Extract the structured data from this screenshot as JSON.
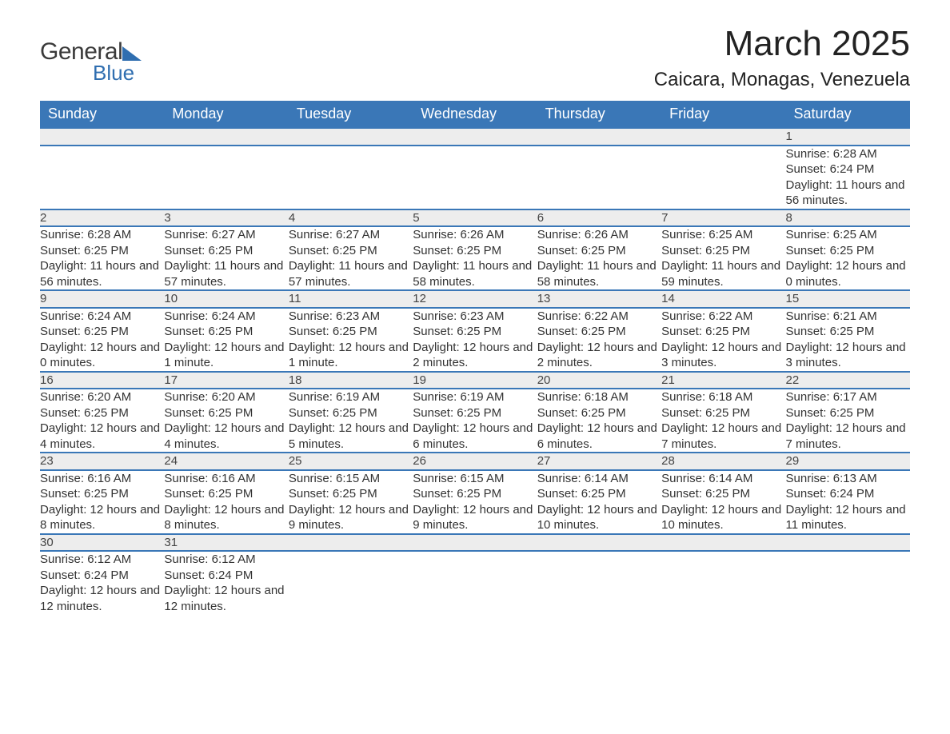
{
  "logo": {
    "word1": "General",
    "word2": "Blue"
  },
  "title": "March 2025",
  "location": "Caicara, Monagas, Venezuela",
  "colors": {
    "header_bg": "#3a77b7",
    "header_text": "#ffffff",
    "daynum_bg": "#ededed",
    "border": "#3a77b7",
    "text": "#333333",
    "logo_accent": "#2f6eb0"
  },
  "typography": {
    "title_fontsize": 44,
    "location_fontsize": 24,
    "header_fontsize": 18,
    "daynum_fontsize": 17,
    "body_fontsize": 15
  },
  "dow": [
    "Sunday",
    "Monday",
    "Tuesday",
    "Wednesday",
    "Thursday",
    "Friday",
    "Saturday"
  ],
  "weeks": [
    [
      null,
      null,
      null,
      null,
      null,
      null,
      {
        "n": "1",
        "sunrise": "Sunrise: 6:28 AM",
        "sunset": "Sunset: 6:24 PM",
        "day": "Daylight: 11 hours and 56 minutes."
      }
    ],
    [
      {
        "n": "2",
        "sunrise": "Sunrise: 6:28 AM",
        "sunset": "Sunset: 6:25 PM",
        "day": "Daylight: 11 hours and 56 minutes."
      },
      {
        "n": "3",
        "sunrise": "Sunrise: 6:27 AM",
        "sunset": "Sunset: 6:25 PM",
        "day": "Daylight: 11 hours and 57 minutes."
      },
      {
        "n": "4",
        "sunrise": "Sunrise: 6:27 AM",
        "sunset": "Sunset: 6:25 PM",
        "day": "Daylight: 11 hours and 57 minutes."
      },
      {
        "n": "5",
        "sunrise": "Sunrise: 6:26 AM",
        "sunset": "Sunset: 6:25 PM",
        "day": "Daylight: 11 hours and 58 minutes."
      },
      {
        "n": "6",
        "sunrise": "Sunrise: 6:26 AM",
        "sunset": "Sunset: 6:25 PM",
        "day": "Daylight: 11 hours and 58 minutes."
      },
      {
        "n": "7",
        "sunrise": "Sunrise: 6:25 AM",
        "sunset": "Sunset: 6:25 PM",
        "day": "Daylight: 11 hours and 59 minutes."
      },
      {
        "n": "8",
        "sunrise": "Sunrise: 6:25 AM",
        "sunset": "Sunset: 6:25 PM",
        "day": "Daylight: 12 hours and 0 minutes."
      }
    ],
    [
      {
        "n": "9",
        "sunrise": "Sunrise: 6:24 AM",
        "sunset": "Sunset: 6:25 PM",
        "day": "Daylight: 12 hours and 0 minutes."
      },
      {
        "n": "10",
        "sunrise": "Sunrise: 6:24 AM",
        "sunset": "Sunset: 6:25 PM",
        "day": "Daylight: 12 hours and 1 minute."
      },
      {
        "n": "11",
        "sunrise": "Sunrise: 6:23 AM",
        "sunset": "Sunset: 6:25 PM",
        "day": "Daylight: 12 hours and 1 minute."
      },
      {
        "n": "12",
        "sunrise": "Sunrise: 6:23 AM",
        "sunset": "Sunset: 6:25 PM",
        "day": "Daylight: 12 hours and 2 minutes."
      },
      {
        "n": "13",
        "sunrise": "Sunrise: 6:22 AM",
        "sunset": "Sunset: 6:25 PM",
        "day": "Daylight: 12 hours and 2 minutes."
      },
      {
        "n": "14",
        "sunrise": "Sunrise: 6:22 AM",
        "sunset": "Sunset: 6:25 PM",
        "day": "Daylight: 12 hours and 3 minutes."
      },
      {
        "n": "15",
        "sunrise": "Sunrise: 6:21 AM",
        "sunset": "Sunset: 6:25 PM",
        "day": "Daylight: 12 hours and 3 minutes."
      }
    ],
    [
      {
        "n": "16",
        "sunrise": "Sunrise: 6:20 AM",
        "sunset": "Sunset: 6:25 PM",
        "day": "Daylight: 12 hours and 4 minutes."
      },
      {
        "n": "17",
        "sunrise": "Sunrise: 6:20 AM",
        "sunset": "Sunset: 6:25 PM",
        "day": "Daylight: 12 hours and 4 minutes."
      },
      {
        "n": "18",
        "sunrise": "Sunrise: 6:19 AM",
        "sunset": "Sunset: 6:25 PM",
        "day": "Daylight: 12 hours and 5 minutes."
      },
      {
        "n": "19",
        "sunrise": "Sunrise: 6:19 AM",
        "sunset": "Sunset: 6:25 PM",
        "day": "Daylight: 12 hours and 6 minutes."
      },
      {
        "n": "20",
        "sunrise": "Sunrise: 6:18 AM",
        "sunset": "Sunset: 6:25 PM",
        "day": "Daylight: 12 hours and 6 minutes."
      },
      {
        "n": "21",
        "sunrise": "Sunrise: 6:18 AM",
        "sunset": "Sunset: 6:25 PM",
        "day": "Daylight: 12 hours and 7 minutes."
      },
      {
        "n": "22",
        "sunrise": "Sunrise: 6:17 AM",
        "sunset": "Sunset: 6:25 PM",
        "day": "Daylight: 12 hours and 7 minutes."
      }
    ],
    [
      {
        "n": "23",
        "sunrise": "Sunrise: 6:16 AM",
        "sunset": "Sunset: 6:25 PM",
        "day": "Daylight: 12 hours and 8 minutes."
      },
      {
        "n": "24",
        "sunrise": "Sunrise: 6:16 AM",
        "sunset": "Sunset: 6:25 PM",
        "day": "Daylight: 12 hours and 8 minutes."
      },
      {
        "n": "25",
        "sunrise": "Sunrise: 6:15 AM",
        "sunset": "Sunset: 6:25 PM",
        "day": "Daylight: 12 hours and 9 minutes."
      },
      {
        "n": "26",
        "sunrise": "Sunrise: 6:15 AM",
        "sunset": "Sunset: 6:25 PM",
        "day": "Daylight: 12 hours and 9 minutes."
      },
      {
        "n": "27",
        "sunrise": "Sunrise: 6:14 AM",
        "sunset": "Sunset: 6:25 PM",
        "day": "Daylight: 12 hours and 10 minutes."
      },
      {
        "n": "28",
        "sunrise": "Sunrise: 6:14 AM",
        "sunset": "Sunset: 6:25 PM",
        "day": "Daylight: 12 hours and 10 minutes."
      },
      {
        "n": "29",
        "sunrise": "Sunrise: 6:13 AM",
        "sunset": "Sunset: 6:24 PM",
        "day": "Daylight: 12 hours and 11 minutes."
      }
    ],
    [
      {
        "n": "30",
        "sunrise": "Sunrise: 6:12 AM",
        "sunset": "Sunset: 6:24 PM",
        "day": "Daylight: 12 hours and 12 minutes."
      },
      {
        "n": "31",
        "sunrise": "Sunrise: 6:12 AM",
        "sunset": "Sunset: 6:24 PM",
        "day": "Daylight: 12 hours and 12 minutes."
      },
      null,
      null,
      null,
      null,
      null
    ]
  ]
}
